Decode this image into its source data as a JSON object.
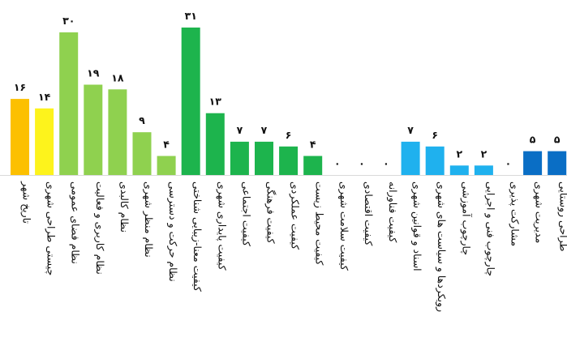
{
  "chart_data": {
    "type": "bar",
    "categories": [
      "تاریخ شهر",
      "چیستی طراحی شهری",
      "نظام فضای عمومی",
      "نظام کاربری و فعالیت",
      "نظام کالبدی",
      "نظام منظر شهری",
      "نظام حرکت و دسترسی",
      "کیفیت معنا-زیبایی شناختی",
      "کیفیت پایداری شهری",
      "کیفیت اجتماعی",
      "کیفیت فرهنگی",
      "کیفیت عملکردی",
      "کیفیت محیط زیست",
      "کیفیت سلامت شهری",
      "کیفیت اقتصادی",
      "کیفیت فناورانه",
      "اسناد و قوانین شهری",
      "رویکردها و سیاست های شهری",
      "چارچوب آموزشی",
      "چارچوب فنی و اجرایی",
      "مشارکت پذیری",
      "مدیریت شهری",
      "طراحی روستایی"
    ],
    "values": [
      16,
      14,
      30,
      19,
      18,
      9,
      4,
      31,
      13,
      7,
      7,
      6,
      4,
      0,
      0,
      0,
      7,
      6,
      2,
      2,
      0,
      5,
      5
    ],
    "value_labels": [
      "۱۶",
      "۱۴",
      "۳۰",
      "۱۹",
      "۱۸",
      "۹",
      "۴",
      "۳۱",
      "۱۳",
      "۷",
      "۷",
      "۶",
      "۴",
      "۰",
      "۰",
      "۰",
      "۷",
      "۶",
      "۲",
      "۲",
      "۰",
      "۵",
      "۵"
    ],
    "colors": [
      "#fcc000",
      "#fdf31c",
      "#8fd14f",
      "#8fd14f",
      "#8fd14f",
      "#8fd14f",
      "#8fd14f",
      "#1db44d",
      "#1db44d",
      "#1db44d",
      "#1db44d",
      "#1db44d",
      "#1db44d",
      "#1db44d",
      "#1db44d",
      "#1db44d",
      "#1fb1ee",
      "#1fb1ee",
      "#1fb1ee",
      "#1fb1ee",
      "#1fb1ee",
      "#0a6ec5",
      "#0a6ec5"
    ],
    "ylim": [
      0,
      31
    ],
    "grid": false,
    "legend": "none"
  }
}
